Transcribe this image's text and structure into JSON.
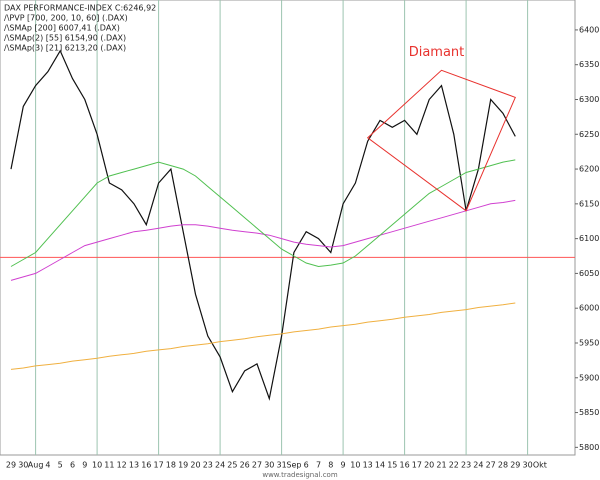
{
  "chart_data": {
    "type": "line",
    "legend_lines": [
      "DAX PERFORMANCE-INDEX C:6246,92",
      "/\\PVP [700, 200, 10, 60] (.DAX)",
      "/\\SMAp [200] 6007,41 (.DAX)",
      "/\\SMAp(2) [55] 6154,90 (.DAX)",
      "/\\SMAp(3) [21] 6213,20 (.DAX)"
    ],
    "watermark": "www.tradesignal.com",
    "categories": [
      "29",
      "30",
      "Aug",
      "4",
      "5",
      "6",
      "9",
      "10",
      "11",
      "12",
      "13",
      "16",
      "17",
      "18",
      "19",
      "20",
      "23",
      "24",
      "25",
      "26",
      "27",
      "30",
      "31",
      "Sep",
      "6",
      "7",
      "8",
      "9",
      "10",
      "13",
      "14",
      "15",
      "16",
      "17",
      "20",
      "21",
      "22",
      "23",
      "24",
      "27",
      "28",
      "29",
      "30",
      "Okt"
    ],
    "series": [
      {
        "name": "DAX PERFORMANCE-INDEX",
        "color": "#111111",
        "values": [
          6200,
          6290,
          6320,
          6340,
          6370,
          6330,
          6300,
          6250,
          6180,
          6170,
          6150,
          6120,
          6180,
          6200,
          6110,
          6020,
          5960,
          5930,
          5880,
          5910,
          5920,
          5870,
          5960,
          6080,
          6110,
          6100,
          6080,
          6150,
          6180,
          6240,
          6270,
          6260,
          6270,
          6250,
          6300,
          6320,
          6250,
          6140,
          6200,
          6300,
          6280,
          6246.92,
          null,
          null
        ]
      },
      {
        "name": "SMAp [200]",
        "color": "#f0b040",
        "values": [
          5912,
          5914,
          5917,
          5919,
          5921,
          5924,
          5926,
          5928,
          5931,
          5933,
          5935,
          5938,
          5940,
          5942,
          5945,
          5947,
          5949,
          5952,
          5954,
          5956,
          5959,
          5961,
          5963,
          5966,
          5968,
          5970,
          5973,
          5975,
          5977,
          5980,
          5982,
          5984,
          5987,
          5989,
          5991,
          5994,
          5996,
          5998,
          6001,
          6003,
          6005,
          6007.41,
          null,
          null
        ]
      },
      {
        "name": "SMAp(2) [55]",
        "color": "#d040d0",
        "values": [
          6040,
          6045,
          6050,
          6060,
          6070,
          6080,
          6090,
          6095,
          6100,
          6105,
          6110,
          6112,
          6115,
          6118,
          6120,
          6120,
          6118,
          6115,
          6112,
          6110,
          6108,
          6105,
          6100,
          6095,
          6092,
          6090,
          6088,
          6090,
          6095,
          6100,
          6105,
          6110,
          6115,
          6120,
          6125,
          6130,
          6135,
          6140,
          6145,
          6150,
          6152,
          6154.9,
          null,
          null
        ]
      },
      {
        "name": "SMAp(3) [21]",
        "color": "#50c050",
        "values": [
          6060,
          6070,
          6080,
          6100,
          6120,
          6140,
          6160,
          6180,
          6190,
          6195,
          6200,
          6205,
          6210,
          6205,
          6200,
          6190,
          6175,
          6160,
          6145,
          6130,
          6115,
          6100,
          6085,
          6075,
          6065,
          6060,
          6062,
          6065,
          6075,
          6090,
          6105,
          6120,
          6135,
          6150,
          6165,
          6175,
          6185,
          6195,
          6200,
          6205,
          6210,
          6213.2,
          null,
          null
        ]
      }
    ],
    "ylim": [
      5789,
      6443
    ],
    "yticks": [
      5800,
      5850,
      5900,
      5950,
      6000,
      6050,
      6100,
      6150,
      6200,
      6250,
      6300,
      6350,
      6400
    ],
    "hline": 6073,
    "hline_color": "#ff5555",
    "diamond": {
      "text": "Diamant",
      "color": "#e8322e",
      "x": [
        29,
        35,
        41,
        37
      ],
      "y": [
        6245,
        6342,
        6303,
        6140
      ]
    }
  }
}
